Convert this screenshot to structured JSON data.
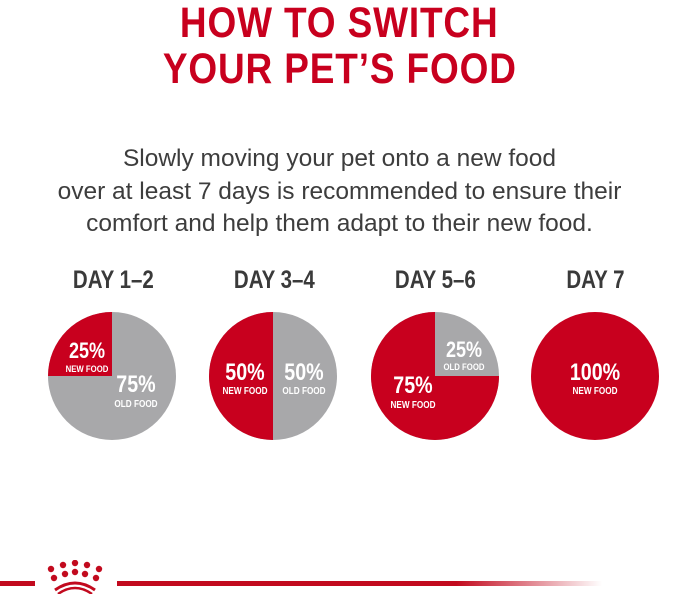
{
  "header": {
    "title_line1": "HOW TO SWITCH",
    "title_line2": "YOUR PET’S FOOD"
  },
  "intro": {
    "line1": "Slowly moving your pet onto a new food",
    "line2": "over at least 7 days is recommended to ensure their",
    "line3": "comfort and help them adapt to their new food."
  },
  "colors": {
    "new_food": "#c8001e",
    "old_food": "#a8a8aa",
    "title": "#c8001e",
    "text": "#3d3d3d"
  },
  "logo": {
    "name": "crown-logo-icon"
  },
  "chart_data": [
    {
      "type": "pie",
      "title": "DAY 1–2",
      "slices": [
        {
          "label": "NEW FOOD",
          "value": 25,
          "text": "25%"
        },
        {
          "label": "OLD FOOD",
          "value": 75,
          "text": "75%"
        }
      ]
    },
    {
      "type": "pie",
      "title": "DAY 3–4",
      "slices": [
        {
          "label": "NEW FOOD",
          "value": 50,
          "text": "50%"
        },
        {
          "label": "OLD FOOD",
          "value": 50,
          "text": "50%"
        }
      ]
    },
    {
      "type": "pie",
      "title": "DAY 5–6",
      "slices": [
        {
          "label": "NEW FOOD",
          "value": 75,
          "text": "75%"
        },
        {
          "label": "OLD FOOD",
          "value": 25,
          "text": "25%"
        }
      ]
    },
    {
      "type": "pie",
      "title": "DAY 7",
      "slices": [
        {
          "label": "NEW FOOD",
          "value": 100,
          "text": "100%"
        }
      ]
    }
  ]
}
